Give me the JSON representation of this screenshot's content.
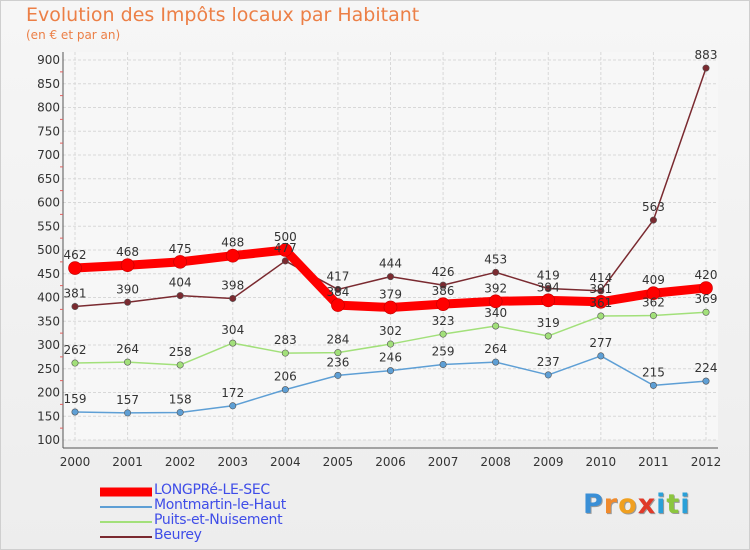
{
  "chart_data": {
    "type": "line",
    "title": "Evolution des Impôts locaux par Habitant",
    "subtitle": "(en € et par an)",
    "x": [
      "2000",
      "2001",
      "2002",
      "2003",
      "2004",
      "2005",
      "2006",
      "2007",
      "2008",
      "2009",
      "2010",
      "2011",
      "2012"
    ],
    "yticks": [
      "100",
      "150",
      "200",
      "250",
      "300",
      "350",
      "400",
      "450",
      "500",
      "550",
      "600",
      "650",
      "700",
      "750",
      "800",
      "850",
      "900"
    ],
    "ylim": [
      100,
      900
    ],
    "grid": true,
    "series": [
      {
        "name": "LONGPRé-LE-SEC",
        "color": "#ff0000",
        "values": [
          462,
          468,
          475,
          488,
          500,
          384,
          379,
          386,
          392,
          394,
          391,
          409,
          420
        ]
      },
      {
        "name": "Montmartin-le-Haut",
        "color": "#5e9fd5",
        "values": [
          159,
          157,
          158,
          172,
          206,
          236,
          246,
          259,
          264,
          237,
          277,
          215,
          224
        ]
      },
      {
        "name": "Puits-et-Nuisement",
        "color": "#a2e07a",
        "values": [
          262,
          264,
          258,
          304,
          283,
          284,
          302,
          323,
          340,
          319,
          361,
          362,
          369
        ]
      },
      {
        "name": "Beurey",
        "color": "#7a2a30",
        "values": [
          381,
          390,
          404,
          398,
          477,
          417,
          444,
          426,
          453,
          419,
          414,
          563,
          883
        ]
      }
    ]
  },
  "logo": {
    "letters": [
      "P",
      "r",
      "o",
      "x",
      "i",
      "t",
      "i"
    ]
  }
}
